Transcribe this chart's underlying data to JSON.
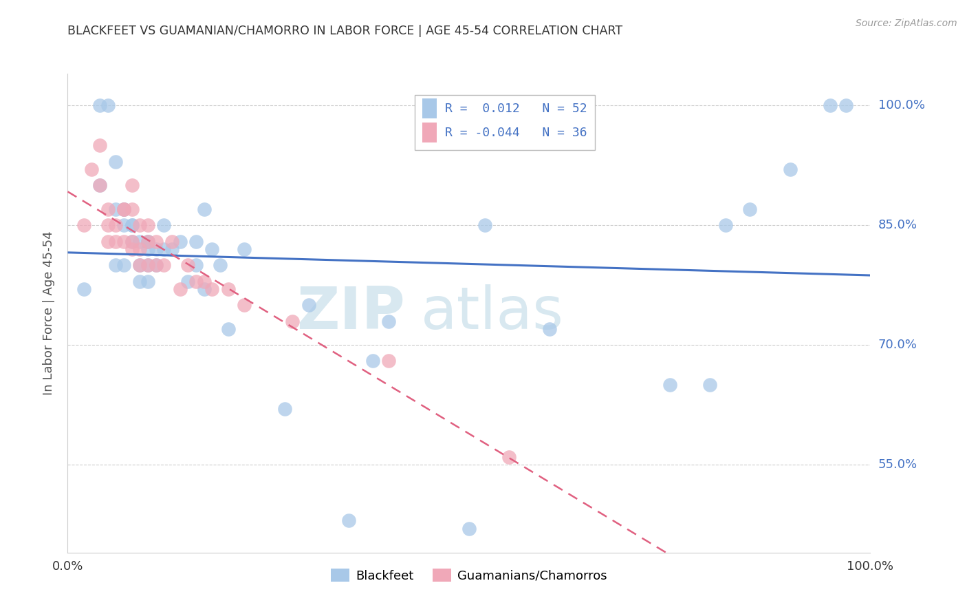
{
  "title": "BLACKFEET VS GUAMANIAN/CHAMORRO IN LABOR FORCE | AGE 45-54 CORRELATION CHART",
  "source": "Source: ZipAtlas.com",
  "ylabel": "In Labor Force | Age 45-54",
  "r_blackfeet": 0.012,
  "n_blackfeet": 52,
  "r_guamanian": -0.044,
  "n_guamanian": 36,
  "xlim": [
    0.0,
    1.0
  ],
  "ylim": [
    0.44,
    1.04
  ],
  "ytick_labels": [
    "55.0%",
    "70.0%",
    "85.0%",
    "100.0%"
  ],
  "ytick_values": [
    0.55,
    0.7,
    0.85,
    1.0
  ],
  "color_blackfeet": "#a8c8e8",
  "color_guamanian": "#f0a8b8",
  "color_regression_blackfeet": "#4472c4",
  "color_regression_guamanian": "#e06080",
  "watermark_zip": "ZIP",
  "watermark_atlas": "atlas",
  "blackfeet_x": [
    0.02,
    0.04,
    0.05,
    0.06,
    0.06,
    0.07,
    0.07,
    0.07,
    0.07,
    0.08,
    0.08,
    0.09,
    0.09,
    0.1,
    0.1,
    0.1,
    0.11,
    0.11,
    0.12,
    0.13,
    0.14,
    0.15,
    0.16,
    0.17,
    0.18,
    0.19,
    0.22,
    0.27,
    0.3,
    0.35,
    0.4,
    0.5,
    0.6,
    0.75,
    0.8,
    0.85,
    0.9,
    0.95,
    0.97,
    0.04,
    0.06,
    0.08,
    0.09,
    0.1,
    0.1,
    0.12,
    0.16,
    0.17,
    0.2,
    0.38,
    0.52,
    0.82
  ],
  "blackfeet_y": [
    0.77,
    1.0,
    1.0,
    0.93,
    0.87,
    0.87,
    0.87,
    0.85,
    0.8,
    0.83,
    0.85,
    0.83,
    0.78,
    0.83,
    0.82,
    0.78,
    0.82,
    0.8,
    0.85,
    0.82,
    0.83,
    0.78,
    0.8,
    0.87,
    0.82,
    0.8,
    0.82,
    0.62,
    0.75,
    0.48,
    0.73,
    0.47,
    0.72,
    0.65,
    0.65,
    0.87,
    0.92,
    1.0,
    1.0,
    0.9,
    0.8,
    0.85,
    0.8,
    0.8,
    0.83,
    0.82,
    0.83,
    0.77,
    0.72,
    0.68,
    0.85,
    0.85
  ],
  "guamanian_x": [
    0.02,
    0.03,
    0.04,
    0.04,
    0.05,
    0.05,
    0.05,
    0.06,
    0.06,
    0.07,
    0.07,
    0.07,
    0.08,
    0.08,
    0.08,
    0.08,
    0.09,
    0.09,
    0.09,
    0.1,
    0.1,
    0.1,
    0.11,
    0.11,
    0.12,
    0.13,
    0.14,
    0.15,
    0.16,
    0.17,
    0.18,
    0.2,
    0.22,
    0.28,
    0.4,
    0.55
  ],
  "guamanian_y": [
    0.85,
    0.92,
    0.95,
    0.9,
    0.87,
    0.85,
    0.83,
    0.85,
    0.83,
    0.87,
    0.87,
    0.83,
    0.9,
    0.87,
    0.83,
    0.82,
    0.85,
    0.82,
    0.8,
    0.85,
    0.83,
    0.8,
    0.83,
    0.8,
    0.8,
    0.83,
    0.77,
    0.8,
    0.78,
    0.78,
    0.77,
    0.77,
    0.75,
    0.73,
    0.68,
    0.56
  ],
  "legend_r1": "R =  0.012   N = 52",
  "legend_r2": "R = -0.044   N = 36"
}
